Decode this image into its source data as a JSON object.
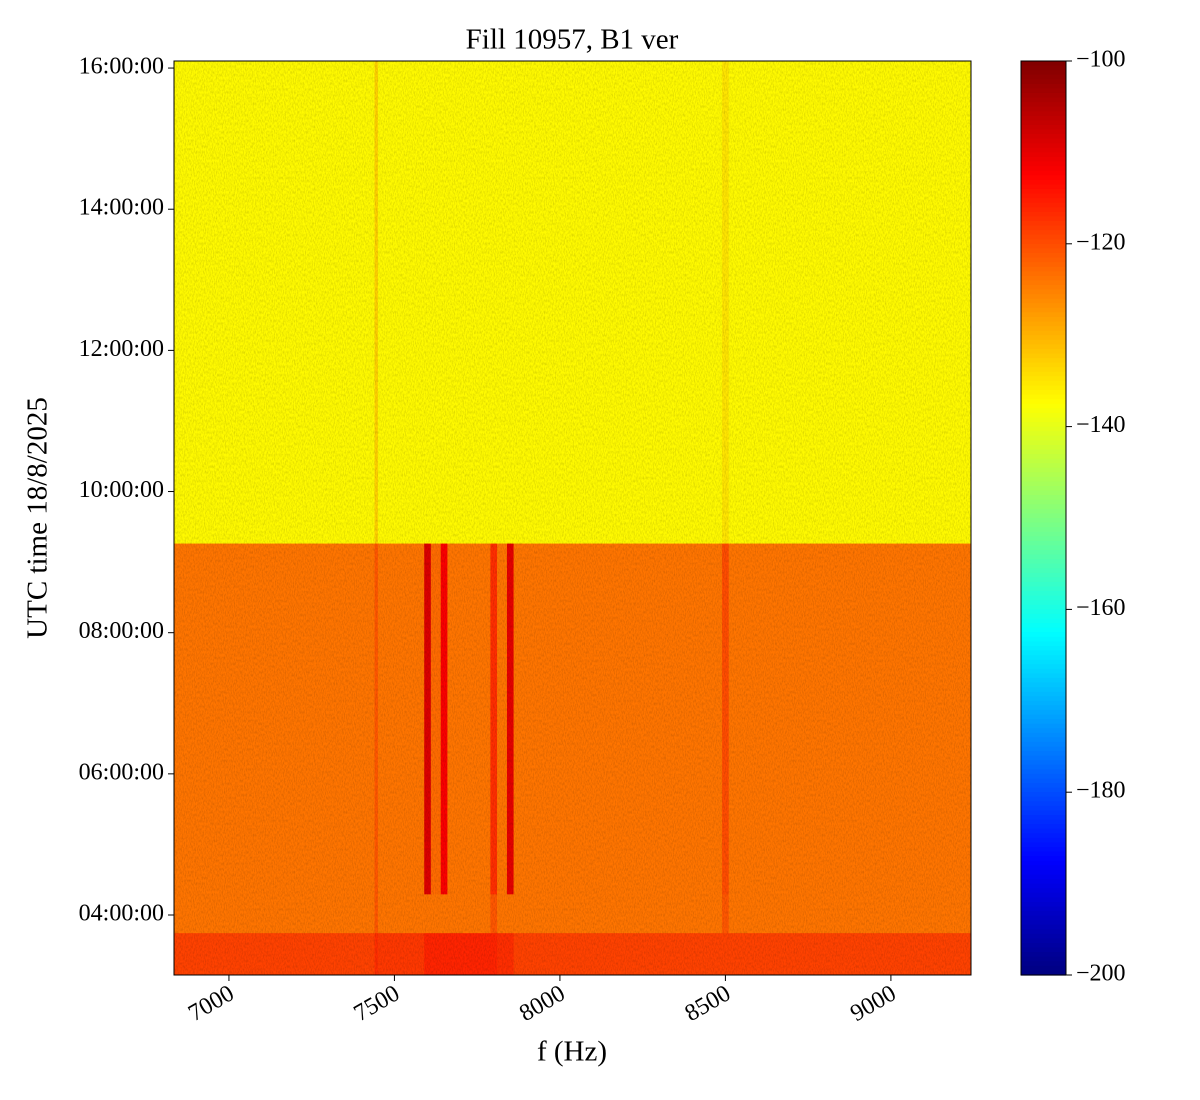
{
  "chart_data": {
    "type": "heatmap",
    "title": "Fill 10957, B1 ver",
    "xlabel": "f (Hz)",
    "ylabel": "UTC time 18/8/2025",
    "colormap": "jet",
    "x_edges": [
      6834,
      7440,
      7450,
      7590,
      7610,
      7640,
      7660,
      7790,
      7810,
      7840,
      7860,
      8490,
      8510,
      9242
    ],
    "y_edges": [
      3.15,
      3.75,
      4.3,
      9.27,
      16.1
    ],
    "z": [
      [
        -119,
        -117,
        -118,
        -116,
        -116,
        -116,
        -116,
        -116,
        -117,
        -117,
        -119,
        -119,
        -119
      ],
      [
        -124,
        -121,
        -124,
        -124,
        -124,
        -124,
        -124,
        -121,
        -124,
        -124,
        -124,
        -121,
        -124
      ],
      [
        -124,
        -121,
        -124,
        -109,
        -123,
        -112,
        -124,
        -117,
        -124,
        -110,
        -124,
        -120,
        -124
      ],
      [
        -137,
        -133,
        -137,
        -137,
        -137,
        -137,
        -137,
        -137,
        -137,
        -137,
        -137,
        -135,
        -137
      ]
    ],
    "xlim": [
      6834,
      9242
    ],
    "xticks": [
      7000,
      7500,
      8000,
      8500,
      9000
    ],
    "ylim": [
      3.15,
      16.1
    ],
    "yticks": [
      {
        "value": 4,
        "label": "04:00:00"
      },
      {
        "value": 6,
        "label": "06:00:00"
      },
      {
        "value": 8,
        "label": "08:00:00"
      },
      {
        "value": 10,
        "label": "10:00:00"
      },
      {
        "value": 12,
        "label": "12:00:00"
      },
      {
        "value": 14,
        "label": "14:00:00"
      },
      {
        "value": 16,
        "label": "16:00:00"
      }
    ],
    "clim": [
      -200,
      -100
    ],
    "cticks": [
      {
        "value": -200,
        "label": "−200"
      },
      {
        "value": -180,
        "label": "−180"
      },
      {
        "value": -160,
        "label": "−160"
      },
      {
        "value": -140,
        "label": "−140"
      },
      {
        "value": -120,
        "label": "−120"
      },
      {
        "value": -100,
        "label": "−100"
      }
    ]
  }
}
